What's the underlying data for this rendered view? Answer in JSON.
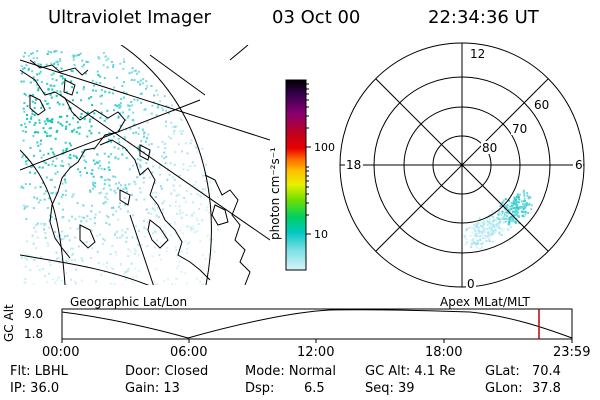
{
  "header": {
    "instrument": "Ultraviolet Imager",
    "date": "03 Oct 00",
    "time": "22:34:36 UT"
  },
  "colorbar": {
    "unit_label": "photon cm⁻²s⁻¹",
    "ticks": [
      "100",
      "10"
    ],
    "colors": [
      "#000000",
      "#3a0050",
      "#8a0070",
      "#c00020",
      "#e80000",
      "#ff7000",
      "#ffc000",
      "#e8f000",
      "#70e000",
      "#00d060",
      "#00c8c0",
      "#80e0e8",
      "#d8f4f8"
    ]
  },
  "polar_plot": {
    "mlt_labels": [
      "12",
      "18",
      "6",
      "0"
    ],
    "mlat_labels": [
      "60",
      "70",
      "80"
    ]
  },
  "map_labels": {
    "left": "Geographic Lat/Lon",
    "right": "Apex MLat/MLT"
  },
  "altitude_plot": {
    "ylabel": "GC Alt",
    "yticks": [
      "9.0",
      "1.8"
    ],
    "xticks": [
      "00:00",
      "06:00",
      "12:00",
      "18:00",
      "23:59"
    ],
    "marker_color": "#c00000"
  },
  "footer": {
    "filter": "Flt: LBHL",
    "ip": "IP: 36.0",
    "door": "Door: Closed",
    "gain": "Gain: 13",
    "mode": "Mode: Normal",
    "dsp_label": "Dsp:",
    "dsp_value": "6.5",
    "gc_alt": "GC Alt: 4.1 Re",
    "seq": "Seq: 39",
    "glat_label": "GLat:",
    "glat_value": "70.4",
    "glon_label": "GLon:",
    "glon_value": "37.8"
  }
}
